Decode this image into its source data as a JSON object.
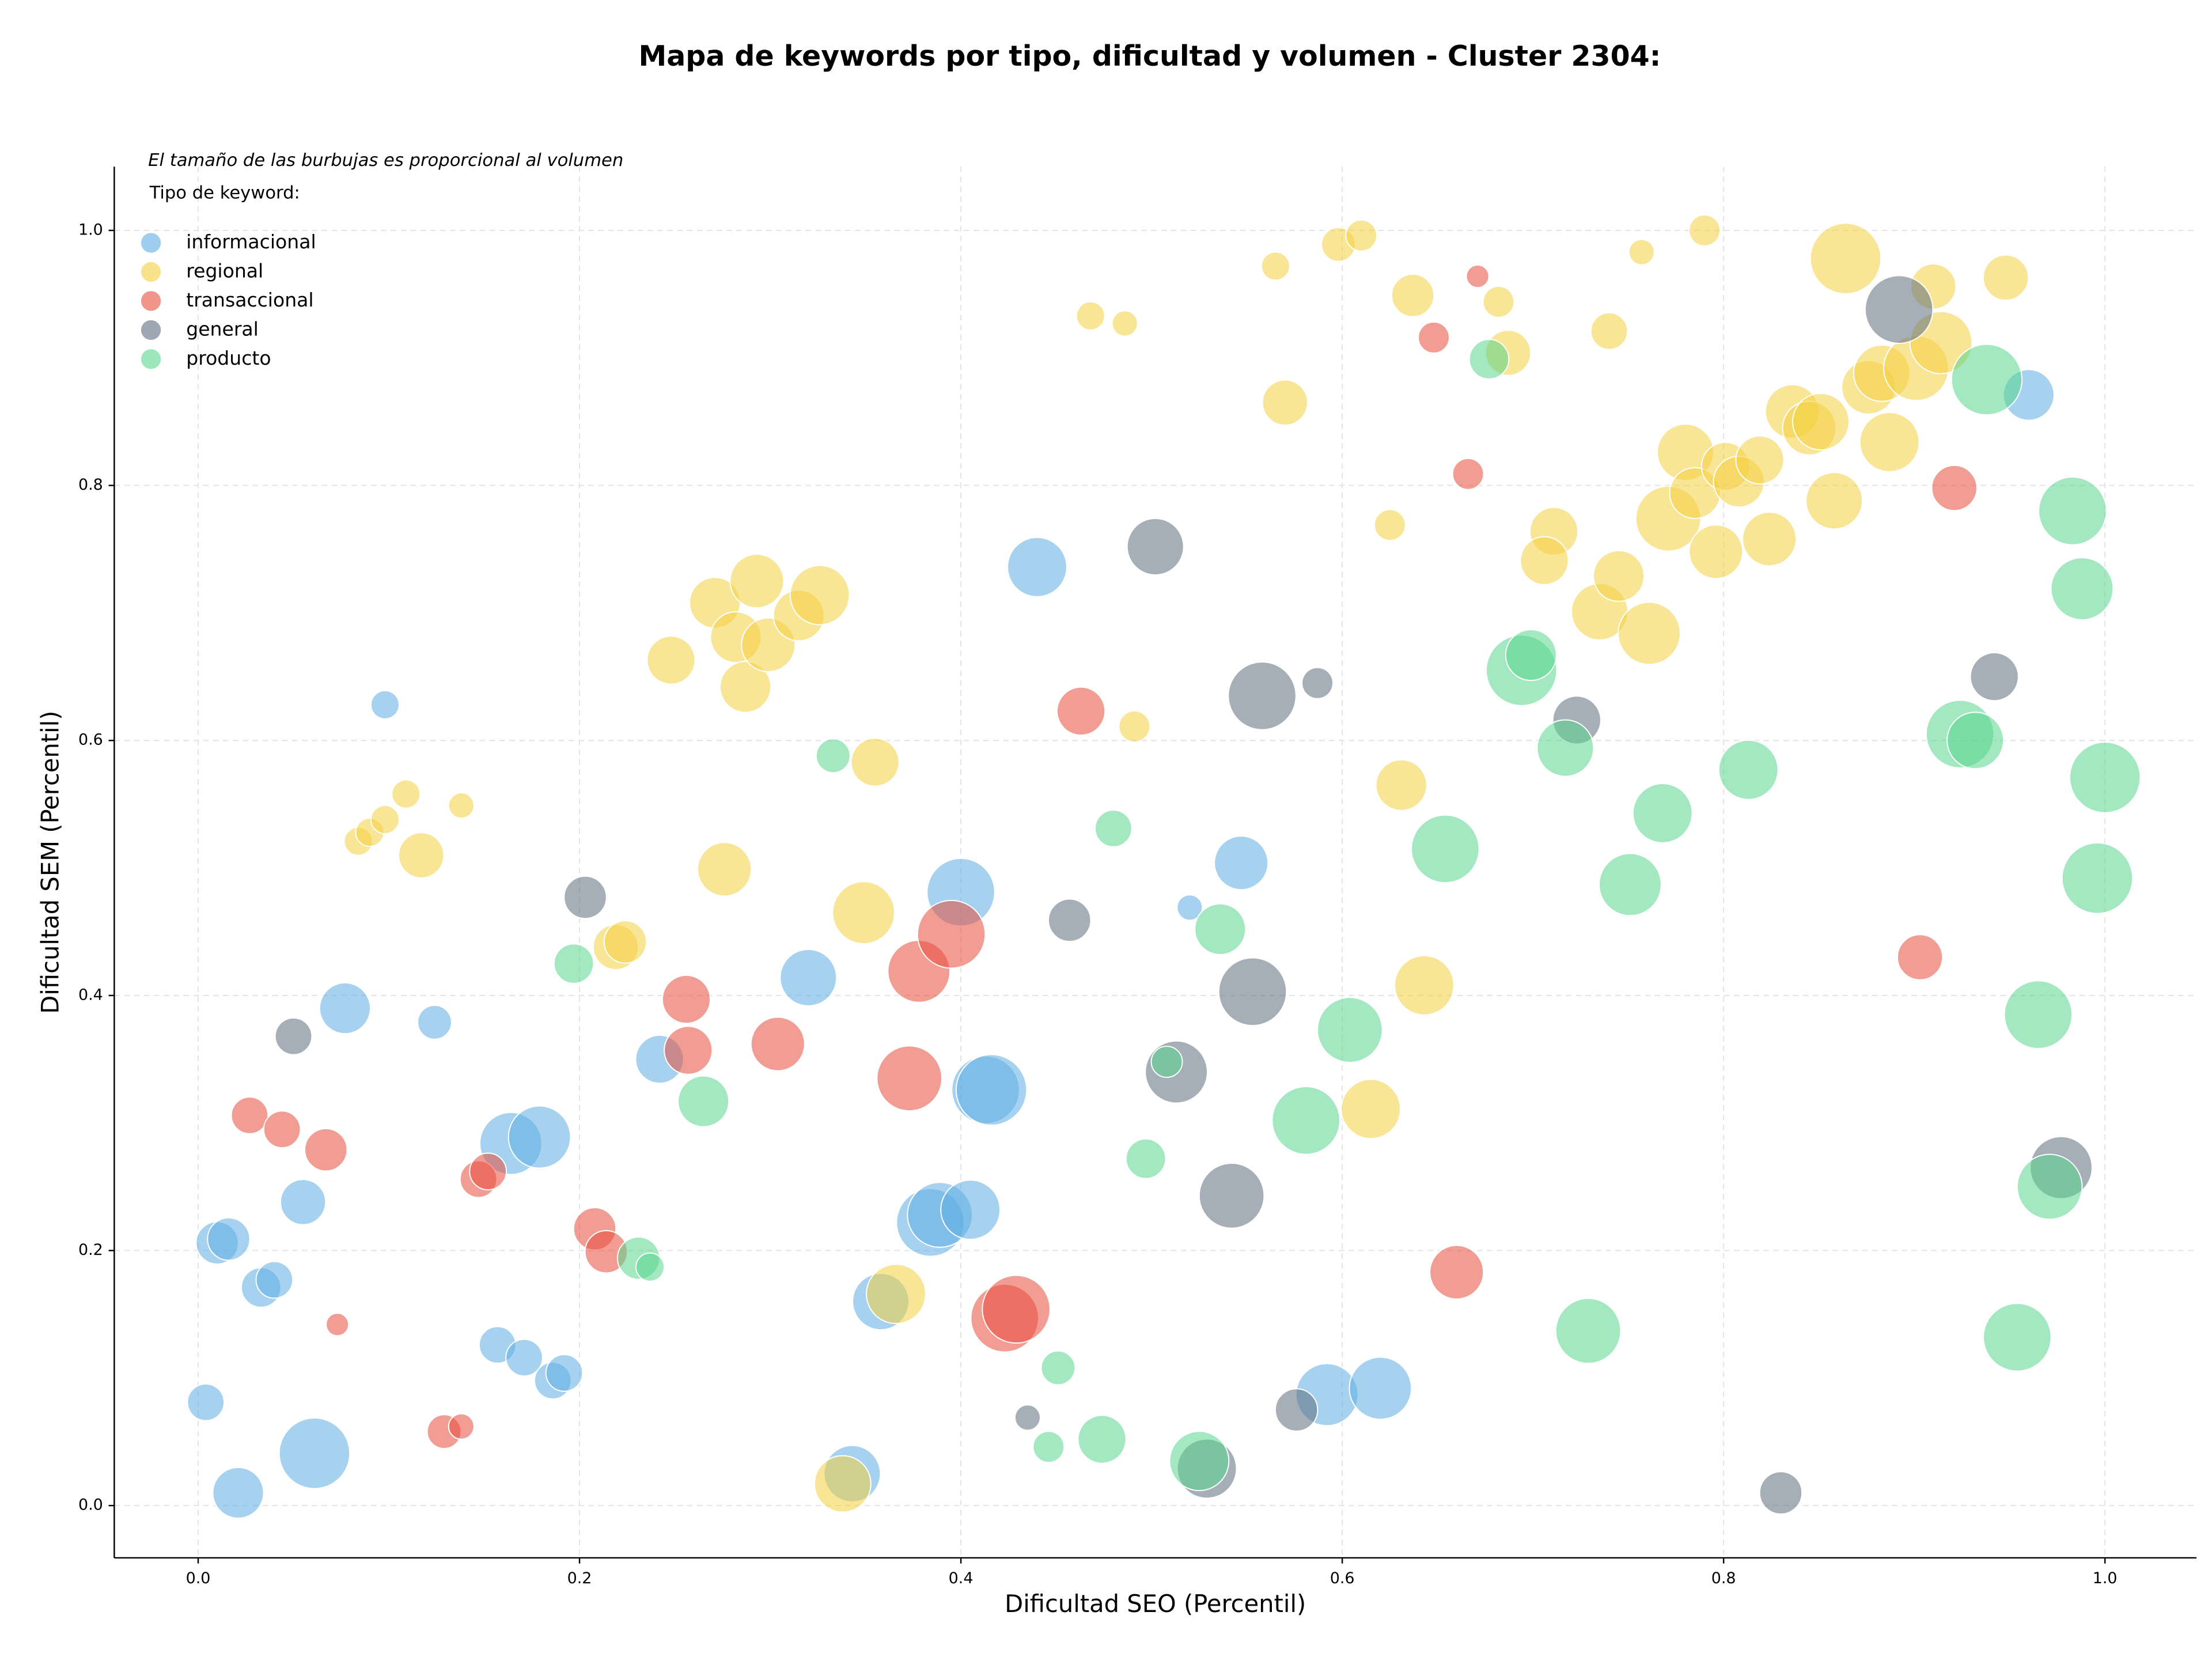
{
  "chart_data": {
    "type": "bubble",
    "title": "Mapa de keywords por tipo, dificultad y volumen - Cluster 2304:",
    "annotation": "El tamaño de las burbujas es proporcional al volumen",
    "legend_title": "Tipo de keyword:",
    "legend": "upper left",
    "x_label": "Dificultad SEO (Percentil)",
    "y_label": "Dificultad SEM (Percentil)",
    "grid": true,
    "xlim": [
      -0.044,
      1.048
    ],
    "ylim": [
      -0.041,
      1.05
    ],
    "xticks": [
      {
        "value": 0,
        "label": "0.0"
      },
      {
        "value": 0.2,
        "label": "0.2"
      },
      {
        "value": 0.4,
        "label": "0.4"
      },
      {
        "value": 0.6,
        "label": "0.6"
      },
      {
        "value": 0.8,
        "label": "0.8"
      },
      {
        "value": 1,
        "label": "1.0"
      }
    ],
    "yticks": [
      {
        "value": 0,
        "label": "0.0"
      },
      {
        "value": 0.2,
        "label": "0.2"
      },
      {
        "value": 0.4,
        "label": "0.4"
      },
      {
        "value": 0.6,
        "label": "0.6"
      },
      {
        "value": 0.8,
        "label": "0.8"
      },
      {
        "value": 1,
        "label": "1.0"
      }
    ],
    "series": [
      {
        "name": "informacional",
        "color": "#5dade2",
        "x": [
          0.098,
          0.077,
          0.124,
          0.055,
          0.01,
          0.016,
          0.033,
          0.04,
          0.004,
          0.021,
          0.061,
          0.164,
          0.179,
          0.157,
          0.171,
          0.186,
          0.192,
          0.242,
          0.32,
          0.44,
          0.4,
          0.52,
          0.547,
          0.413,
          0.416,
          0.384,
          0.389,
          0.405,
          0.358,
          0.343,
          0.592,
          0.62,
          0.96
        ],
        "values": [
          0.628,
          0.39,
          0.379,
          0.238,
          0.206,
          0.209,
          0.171,
          0.177,
          0.081,
          0.01,
          0.041,
          0.284,
          0.289,
          0.126,
          0.116,
          0.098,
          0.104,
          0.35,
          0.414,
          0.736,
          0.481,
          0.469,
          0.504,
          0.326,
          0.326,
          0.222,
          0.228,
          0.232,
          0.16,
          0.025,
          0.087,
          0.092,
          0.871
        ],
        "sizes": [
          100,
          324,
          144,
          256,
          225,
          225,
          196,
          169,
          169,
          324,
          625,
          484,
          484,
          169,
          169,
          169,
          169,
          289,
          400,
          441,
          576,
          81,
          361,
          576,
          625,
          576,
          529,
          441,
          400,
          400,
          484,
          484,
          324
        ]
      },
      {
        "name": "regional",
        "color": "#f4d03f",
        "x": [
          0.084,
          0.09,
          0.098,
          0.109,
          0.138,
          0.117,
          0.248,
          0.271,
          0.293,
          0.282,
          0.287,
          0.299,
          0.315,
          0.326,
          0.355,
          0.276,
          0.349,
          0.219,
          0.224,
          0.366,
          0.338,
          0.491,
          0.468,
          0.486,
          0.565,
          0.598,
          0.61,
          0.57,
          0.625,
          0.637,
          0.682,
          0.687,
          0.631,
          0.643,
          0.615,
          0.711,
          0.706,
          0.735,
          0.745,
          0.761,
          0.74,
          0.757,
          0.79,
          0.771,
          0.78,
          0.785,
          0.796,
          0.801,
          0.808,
          0.819,
          0.824,
          0.836,
          0.845,
          0.851,
          0.858,
          0.864,
          0.876,
          0.883,
          0.887,
          0.901,
          0.914,
          0.91,
          0.948
        ],
        "values": [
          0.521,
          0.528,
          0.538,
          0.558,
          0.549,
          0.51,
          0.663,
          0.708,
          0.725,
          0.681,
          0.642,
          0.675,
          0.698,
          0.714,
          0.583,
          0.499,
          0.465,
          0.438,
          0.442,
          0.166,
          0.017,
          0.611,
          0.933,
          0.927,
          0.972,
          0.989,
          0.996,
          0.865,
          0.769,
          0.949,
          0.944,
          0.904,
          0.565,
          0.408,
          0.311,
          0.764,
          0.741,
          0.701,
          0.729,
          0.684,
          0.921,
          0.983,
          1.0,
          0.774,
          0.826,
          0.794,
          0.748,
          0.815,
          0.803,
          0.82,
          0.758,
          0.858,
          0.845,
          0.85,
          0.788,
          0.978,
          0.877,
          0.888,
          0.834,
          0.892,
          0.912,
          0.956,
          0.963
        ],
        "sizes": [
          100,
          100,
          100,
          100,
          81,
          256,
          289,
          324,
          361,
          324,
          324,
          361,
          324,
          441,
          289,
          361,
          484,
          256,
          225,
          441,
          400,
          121,
          100,
          81,
          100,
          144,
          121,
          256,
          121,
          225,
          121,
          256,
          324,
          441,
          441,
          289,
          289,
          400,
          324,
          484,
          169,
          81,
          121,
          529,
          400,
          324,
          361,
          289,
          324,
          289,
          361,
          361,
          361,
          400,
          400,
          625,
          361,
          400,
          441,
          529,
          484,
          256,
          256
        ]
      },
      {
        "name": "transaccional",
        "color": "#e74c3c",
        "x": [
          0.027,
          0.044,
          0.067,
          0.073,
          0.147,
          0.152,
          0.129,
          0.138,
          0.208,
          0.214,
          0.256,
          0.257,
          0.304,
          0.378,
          0.395,
          0.373,
          0.423,
          0.429,
          0.463,
          0.648,
          0.671,
          0.666,
          0.66,
          0.903,
          0.921
        ],
        "values": [
          0.306,
          0.295,
          0.279,
          0.142,
          0.256,
          0.262,
          0.058,
          0.062,
          0.217,
          0.199,
          0.397,
          0.357,
          0.362,
          0.419,
          0.448,
          0.335,
          0.147,
          0.154,
          0.623,
          0.916,
          0.964,
          0.809,
          0.183,
          0.43,
          0.798
        ],
        "sizes": [
          169,
          169,
          225,
          64,
          169,
          169,
          144,
          81,
          225,
          225,
          289,
          289,
          361,
          484,
          576,
          529,
          576,
          576,
          289,
          121,
          64,
          121,
          361,
          256,
          256
        ]
      },
      {
        "name": "general",
        "color": "#5d6d7e",
        "x": [
          0.05,
          0.203,
          0.435,
          0.457,
          0.502,
          0.513,
          0.529,
          0.542,
          0.553,
          0.558,
          0.587,
          0.576,
          0.723,
          0.83,
          0.892,
          0.942,
          0.977
        ],
        "values": [
          0.368,
          0.477,
          0.069,
          0.459,
          0.752,
          0.34,
          0.029,
          0.243,
          0.403,
          0.635,
          0.645,
          0.075,
          0.616,
          0.01,
          0.938,
          0.65,
          0.265
        ],
        "sizes": [
          169,
          225,
          81,
          225,
          400,
          484,
          441,
          529,
          576,
          576,
          121,
          225,
          289,
          225,
          576,
          289,
          484
        ]
      },
      {
        "name": "producto",
        "color": "#58d68d",
        "x": [
          0.333,
          0.197,
          0.265,
          0.231,
          0.237,
          0.446,
          0.451,
          0.474,
          0.48,
          0.497,
          0.508,
          0.525,
          0.536,
          0.581,
          0.604,
          0.654,
          0.677,
          0.694,
          0.699,
          0.717,
          0.729,
          0.751,
          0.768,
          0.813,
          0.924,
          0.932,
          0.938,
          0.983,
          0.988,
          1.0,
          0.996,
          0.965,
          0.971,
          0.954
        ],
        "values": [
          0.588,
          0.425,
          0.317,
          0.194,
          0.187,
          0.046,
          0.108,
          0.052,
          0.531,
          0.272,
          0.348,
          0.035,
          0.452,
          0.302,
          0.373,
          0.515,
          0.899,
          0.655,
          0.667,
          0.594,
          0.137,
          0.487,
          0.543,
          0.577,
          0.605,
          0.6,
          0.883,
          0.78,
          0.719,
          0.571,
          0.492,
          0.385,
          0.25,
          0.132
        ],
        "sizes": [
          144,
          196,
          324,
          225,
          100,
          121,
          144,
          289,
          169,
          196,
          121,
          441,
          324,
          576,
          529,
          576,
          196,
          625,
          324,
          400,
          529,
          484,
          441,
          441,
          576,
          400,
          625,
          576,
          484,
          625,
          625,
          576,
          529,
          576
        ]
      }
    ]
  }
}
